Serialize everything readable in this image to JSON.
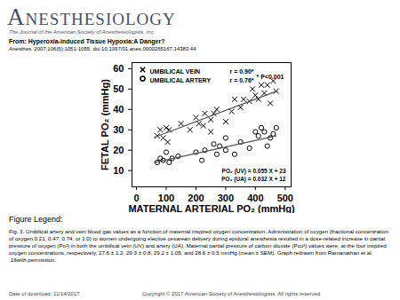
{
  "page": {
    "journal": "Anesthesiology",
    "journal_subtitle": "The Journal of the American Society of Anesthesiologists, Inc.",
    "from": "From: Hyperoxia-induced Tissue Hypoxia:A Danger?",
    "citation": "Anesthes. 2007;106(5):1051-1055. doi:10.1097/01.anes.0000265167.14383.44",
    "legend_heading": "Figure Legend:",
    "legend_text": "Fig. 3. Umbilical artery and vein blood gas values as a function of maternal inspired oxygen concentration. Administration of oxygen (fractional concentration of oxygen 0.21, 0.47, 0.74, or 1.0) to women undergoing elective cesarean delivery during epidural anesthesia resulted in a dose-related increase in partial pressure of oxygen (Po²) in both the umbilical vein (UV) and artery (UA). Maternal partial pressure of carbon dioxide (Pco²) values were, at the four inspired oxygen concentrations, respectively, 27.6 ± 1.2, 29.3 ± 0.8, 29.2 ± 1.05, and 28.6 ± 0.5 mmHg (mean ± SEM). Graph redrawn from Ramanathan  et al.  ,16with permission.",
    "download": "Date of download:  11/14/2017",
    "copyright": "Copyright © 2017 American Society of Anesthesiologists. All rights reserved."
  },
  "chart_data": {
    "type": "scatter",
    "x_label": "MATERNAL ARTERIAL PO₂ (mmHg)",
    "y_label": "FETAL PO₂ (mmHg)",
    "xlim": [
      -15,
      520
    ],
    "xticks": [
      0,
      100,
      200,
      300,
      400,
      500
    ],
    "ylim": [
      2,
      63
    ],
    "yticks": [
      10,
      20,
      30,
      40,
      50,
      60
    ],
    "grid": false,
    "legend": "top-left",
    "series": [
      {
        "name": "UMBILICAL VEIN",
        "color": "#000000",
        "marker": "times",
        "r_label": "r = 0.90*",
        "equation": "PO₂ (UV) = 0.055 X + 23",
        "x": [
          70,
          80,
          90,
          100,
          110,
          105,
          150,
          180,
          200,
          210,
          230,
          250,
          260,
          270,
          300,
          320,
          330,
          350,
          360,
          380,
          390,
          400,
          410,
          420,
          430,
          440,
          450,
          460,
          470,
          250,
          225
        ],
        "values": [
          27,
          30,
          26,
          31,
          30,
          24,
          33,
          30,
          36,
          33,
          38,
          35,
          38,
          40,
          34,
          39,
          45,
          41,
          45,
          44,
          50,
          47,
          45,
          52,
          48,
          52,
          43,
          54,
          49,
          29,
          32
        ],
        "fit": {
          "x": [
            60,
            470
          ],
          "values": [
            26.3,
            48.9
          ]
        }
      },
      {
        "name": "UMBILICAL ARTERY",
        "color": "#000000",
        "marker": "circle",
        "r_label": "r = 0.76*",
        "equation": "PO₂ (UA) = 0.032 X + 12",
        "x": [
          70,
          80,
          90,
          100,
          110,
          120,
          140,
          200,
          220,
          230,
          260,
          270,
          280,
          300,
          330,
          350,
          380,
          400,
          410,
          420,
          430,
          440,
          450,
          460,
          470,
          300
        ],
        "values": [
          14,
          16,
          15,
          19,
          14,
          16,
          17,
          19,
          15,
          20,
          23,
          18,
          22,
          20,
          18,
          24,
          21,
          29,
          27,
          31,
          29,
          22,
          26,
          28,
          31,
          26
        ],
        "fit": {
          "x": [
            60,
            470
          ],
          "values": [
            13.9,
            27.0
          ]
        }
      }
    ],
    "annotations": [
      "* P<0.001"
    ]
  }
}
